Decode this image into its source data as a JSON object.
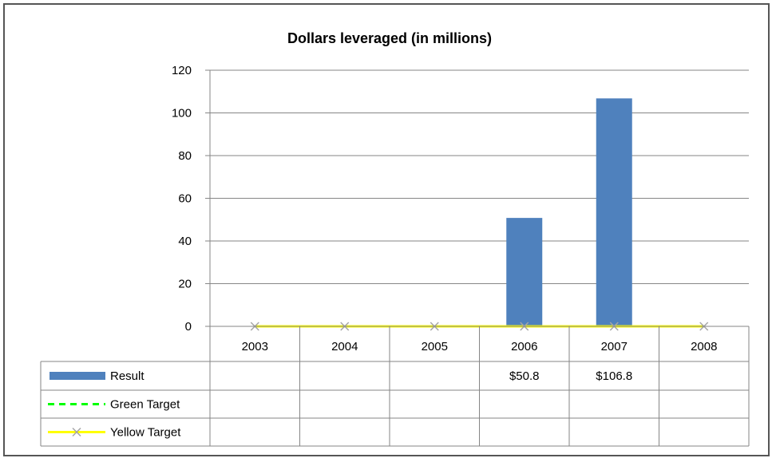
{
  "chart_data": {
    "type": "bar",
    "title": "Dollars leveraged (in millions)",
    "categories": [
      "2003",
      "2004",
      "2005",
      "2006",
      "2007",
      "2008"
    ],
    "ylim": [
      0,
      120
    ],
    "yticks": [
      "0",
      "20",
      "40",
      "60",
      "80",
      "100",
      "120"
    ],
    "grid": true,
    "legend": "data-table",
    "series": [
      {
        "name": "Result",
        "kind": "bar",
        "color": "#4F81BD",
        "values": [
          null,
          null,
          null,
          50.8,
          106.8,
          null
        ],
        "labels": [
          "",
          "",
          "",
          "$50.8",
          "$106.8",
          ""
        ]
      },
      {
        "name": "Green Target",
        "kind": "line-dashed",
        "color": "#00FF00",
        "values": [
          null,
          null,
          null,
          null,
          null,
          null
        ],
        "labels": [
          "",
          "",
          "",
          "",
          "",
          ""
        ]
      },
      {
        "name": "Yellow Target",
        "kind": "line-marker",
        "color": "#FFFF00",
        "marker_color": "#A6A6A6",
        "values": [
          0,
          0,
          0,
          0,
          0,
          0
        ],
        "labels": [
          "",
          "",
          "",
          "",
          "",
          ""
        ]
      }
    ]
  }
}
